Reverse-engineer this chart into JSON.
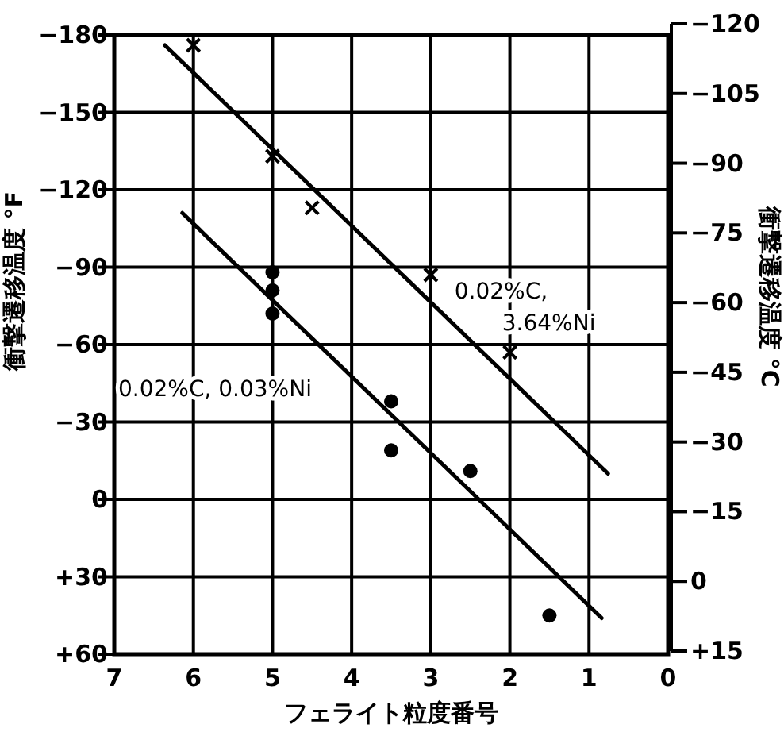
{
  "chart_data": {
    "type": "scatter",
    "xlabel": "フェライト粒度番号",
    "ylabel": "衝撃遷移温度 °F",
    "y2label": "衝撃遷移温度 °C",
    "xlim": [
      7,
      0
    ],
    "xticks": [
      7,
      6,
      5,
      4,
      3,
      2,
      1,
      0
    ],
    "ylim": [
      60,
      -180
    ],
    "yticks": [
      {
        "value": -180,
        "label": "−180"
      },
      {
        "value": -150,
        "label": "−150"
      },
      {
        "value": -120,
        "label": "−120"
      },
      {
        "value": -90,
        "label": "−90"
      },
      {
        "value": -60,
        "label": "−60"
      },
      {
        "value": -30,
        "label": "−30"
      },
      0,
      {
        "value": 30,
        "label": "+30"
      },
      {
        "value": 60,
        "label": "+60"
      }
    ],
    "y2lim": [
      15,
      -120
    ],
    "y2ticks": [
      {
        "value": -120,
        "label": "−120"
      },
      {
        "value": -105,
        "label": "−105"
      },
      {
        "value": -90,
        "label": "−90"
      },
      {
        "value": -75,
        "label": "−75"
      },
      {
        "value": -60,
        "label": "−60"
      },
      {
        "value": -45,
        "label": "−45"
      },
      {
        "value": -30,
        "label": "−30"
      },
      {
        "value": -15,
        "label": "−15"
      },
      0,
      {
        "value": 15,
        "label": "+15"
      }
    ],
    "grid": true,
    "series": [
      {
        "marker": "cross",
        "color": "#000000",
        "x": [
          6,
          5,
          4.5,
          3,
          2
        ],
        "values": [
          -176,
          -133,
          -113,
          -87,
          -57
        ]
      },
      {
        "marker": "circle",
        "color": "#000000",
        "x": [
          5,
          5,
          5,
          3.5,
          3.5,
          2.5,
          1.5
        ],
        "values": [
          -88,
          -81,
          -72,
          -38,
          -19,
          -11,
          45
        ]
      },
      {
        "type": "line",
        "marker": "none",
        "color": "#000000",
        "x": [
          6.36,
          0.76
        ],
        "values": [
          -176,
          -10
        ]
      },
      {
        "type": "line",
        "marker": "none",
        "color": "#000000",
        "x": [
          6.14,
          0.84
        ],
        "values": [
          -111,
          46
        ]
      }
    ],
    "annotations": [
      "0.02%C,\n3.64%Ni",
      "0.02%C, 0.03%Ni"
    ]
  }
}
